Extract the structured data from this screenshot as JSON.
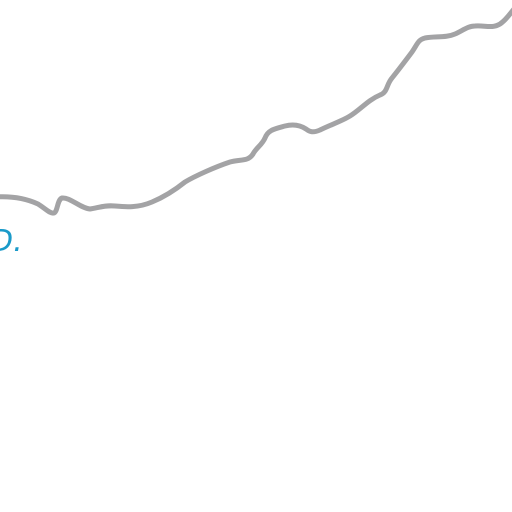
{
  "colors": {
    "background": "#ffffff",
    "ridge_line": "#a3a3a5",
    "text_accent": "#1a9ac9"
  },
  "text": {
    "partial_glyph": "D."
  },
  "icons": {
    "ridge": "ridge-line"
  }
}
